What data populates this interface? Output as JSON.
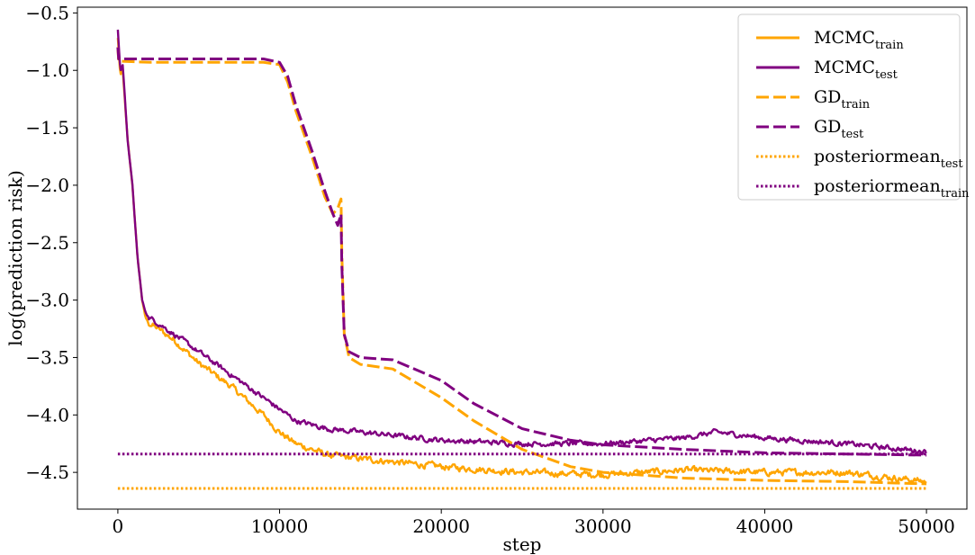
{
  "chart_data": {
    "type": "line",
    "title": "",
    "xlabel": "step",
    "ylabel": "log(prediction risk)",
    "xlim": [
      -2500,
      52500
    ],
    "ylim": [
      -4.82,
      -0.45
    ],
    "xticks": [
      0,
      10000,
      20000,
      30000,
      40000,
      50000
    ],
    "xtick_labels": [
      "0",
      "10000",
      "20000",
      "30000",
      "40000",
      "50000"
    ],
    "yticks": [
      -0.5,
      -1.0,
      -1.5,
      -2.0,
      -2.5,
      -3.0,
      -3.5,
      -4.0,
      -4.5
    ],
    "ytick_labels": [
      "−0.5",
      "−1.0",
      "−1.5",
      "−2.0",
      "−2.5",
      "−3.0",
      "−3.5",
      "−4.0",
      "−4.5"
    ],
    "grid": false,
    "legend_position": "top-right",
    "colors": {
      "orange": "#FFA500",
      "purple": "#800080"
    },
    "series": [
      {
        "name": "MCMC",
        "subscript": "train",
        "color": "#FFA500",
        "style": "solid",
        "noise": 0.05,
        "x": [
          0,
          150,
          300,
          600,
          900,
          1200,
          1500,
          1700,
          1900,
          2500,
          3500,
          5000,
          7000,
          9000,
          10000,
          11000,
          13000,
          15000,
          20000,
          25000,
          30000,
          35000,
          40000,
          45000,
          50000
        ],
        "y": [
          -0.72,
          -1.05,
          -1.0,
          -1.6,
          -2.0,
          -2.6,
          -3.0,
          -3.15,
          -3.2,
          -3.25,
          -3.35,
          -3.55,
          -3.75,
          -4.0,
          -4.15,
          -4.25,
          -4.35,
          -4.38,
          -4.45,
          -4.5,
          -4.52,
          -4.48,
          -4.5,
          -4.5,
          -4.58
        ]
      },
      {
        "name": "MCMC",
        "subscript": "test",
        "color": "#800080",
        "style": "solid",
        "noise": 0.04,
        "x": [
          0,
          150,
          300,
          600,
          900,
          1200,
          1500,
          1700,
          1900,
          2500,
          3500,
          5000,
          7000,
          9000,
          10000,
          11000,
          13000,
          15000,
          20000,
          25000,
          30000,
          35000,
          37000,
          40000,
          45000,
          50000
        ],
        "y": [
          -0.65,
          -1.0,
          -0.95,
          -1.6,
          -2.0,
          -2.6,
          -3.0,
          -3.1,
          -3.15,
          -3.2,
          -3.3,
          -3.45,
          -3.65,
          -3.85,
          -3.95,
          -4.05,
          -4.12,
          -4.15,
          -4.22,
          -4.25,
          -4.25,
          -4.2,
          -4.15,
          -4.2,
          -4.25,
          -4.32
        ]
      },
      {
        "name": "GD",
        "subscript": "train",
        "color": "#FFA500",
        "style": "dashed",
        "noise": 0,
        "x": [
          0,
          50,
          2000,
          6000,
          9000,
          10000,
          10500,
          11000,
          12000,
          12800,
          13300,
          13600,
          13800,
          13850,
          14000,
          14300,
          15000,
          17000,
          20000,
          22000,
          25000,
          28000,
          30000,
          35000,
          40000,
          45000,
          50000
        ],
        "y": [
          -0.8,
          -0.92,
          -0.93,
          -0.93,
          -0.93,
          -0.95,
          -1.1,
          -1.35,
          -1.75,
          -2.1,
          -2.25,
          -2.2,
          -2.12,
          -2.6,
          -3.3,
          -3.5,
          -3.56,
          -3.6,
          -3.85,
          -4.05,
          -4.3,
          -4.45,
          -4.5,
          -4.55,
          -4.57,
          -4.58,
          -4.6
        ]
      },
      {
        "name": "GD",
        "subscript": "test",
        "color": "#800080",
        "style": "dashed",
        "noise": 0,
        "x": [
          0,
          50,
          2000,
          6000,
          9000,
          10000,
          10500,
          11000,
          12000,
          12800,
          13300,
          13600,
          13800,
          13850,
          14000,
          14300,
          15000,
          17000,
          20000,
          22000,
          25000,
          28000,
          30000,
          35000,
          40000,
          45000,
          50000
        ],
        "y": [
          -0.8,
          -0.9,
          -0.9,
          -0.9,
          -0.9,
          -0.93,
          -1.05,
          -1.3,
          -1.7,
          -2.05,
          -2.25,
          -2.35,
          -2.25,
          -2.7,
          -3.3,
          -3.45,
          -3.5,
          -3.52,
          -3.7,
          -3.9,
          -4.12,
          -4.22,
          -4.26,
          -4.3,
          -4.33,
          -4.34,
          -4.35
        ]
      },
      {
        "name": "posteriormean",
        "subscript": "test",
        "color": "#FFA500",
        "style": "dotted",
        "noise": 0,
        "x": [
          0,
          50000
        ],
        "y": [
          -4.64,
          -4.64
        ]
      },
      {
        "name": "posteriormean",
        "subscript": "train",
        "color": "#800080",
        "style": "dotted",
        "noise": 0,
        "x": [
          0,
          50000
        ],
        "y": [
          -4.34,
          -4.34
        ]
      }
    ]
  }
}
